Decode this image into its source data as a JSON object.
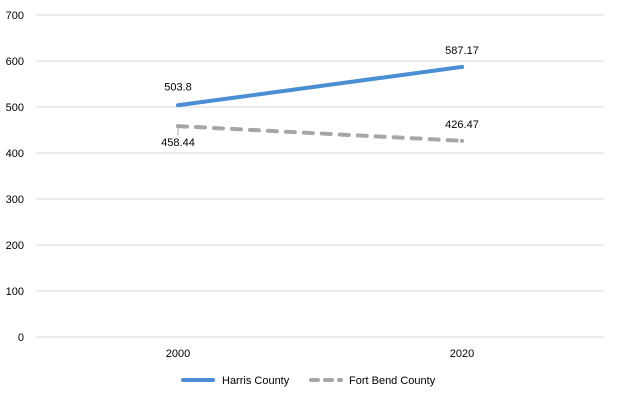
{
  "chart_data": {
    "type": "line",
    "categories": [
      "2000",
      "2020"
    ],
    "series": [
      {
        "name": "Harris County",
        "values": [
          503.8,
          587.17
        ],
        "labels": [
          "503.8",
          "587.17"
        ],
        "color": "#4a8fd4",
        "dash": "solid"
      },
      {
        "name": "Fort Bend County",
        "values": [
          458.44,
          426.47
        ],
        "labels": [
          "458.44",
          "426.47"
        ],
        "color": "#a6a6a6",
        "dash": "dashed"
      }
    ],
    "ylim": [
      0,
      700
    ],
    "yticks": [
      "0",
      "100",
      "200",
      "300",
      "400",
      "500",
      "600",
      "700"
    ],
    "grid": true,
    "legend": "bottom",
    "title": "",
    "xlabel": "",
    "ylabel": ""
  }
}
